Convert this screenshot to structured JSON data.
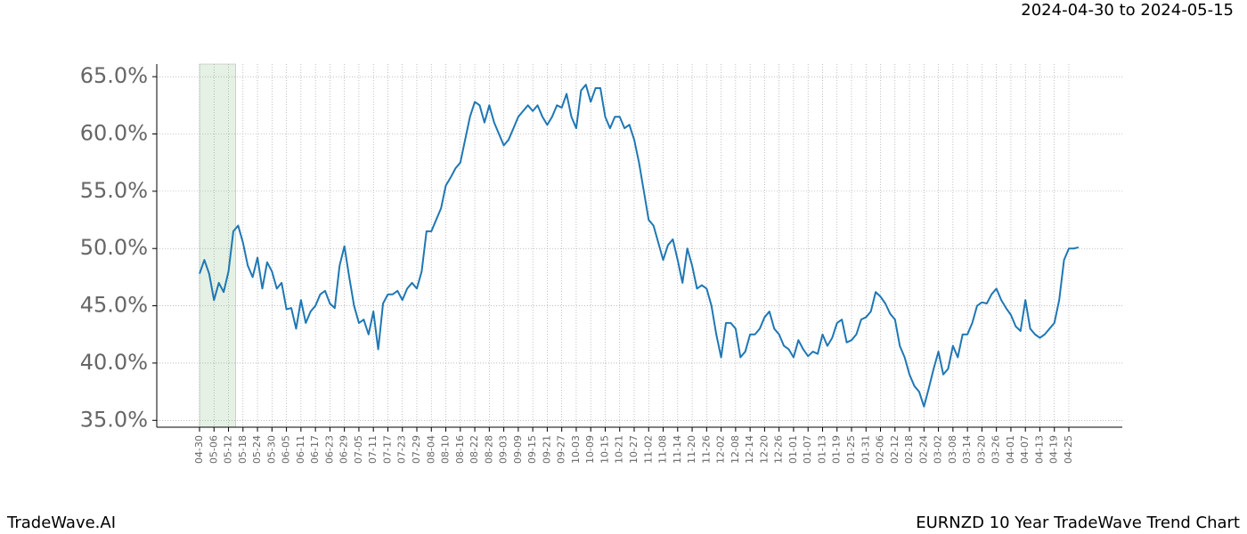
{
  "chart_data": {
    "type": "line",
    "subtitle": "2024-04-30 to 2024-05-15",
    "highlight_color": "#e4f1e4",
    "categories": [
      "04-30",
      null,
      null,
      "05-06",
      null,
      null,
      "05-12",
      null,
      null,
      "05-18",
      null,
      null,
      "05-24",
      null,
      null,
      "05-30",
      null,
      null,
      "06-05",
      null,
      null,
      "06-11",
      null,
      null,
      "06-17",
      null,
      null,
      "06-23",
      null,
      null,
      "06-29",
      null,
      null,
      "07-05",
      null,
      null,
      "07-11",
      null,
      null,
      "07-17",
      null,
      null,
      "07-23",
      null,
      null,
      "07-29",
      null,
      null,
      "08-04",
      null,
      null,
      "08-10",
      null,
      null,
      "08-16",
      null,
      null,
      "08-22",
      null,
      null,
      "08-28",
      null,
      null,
      "09-03",
      null,
      null,
      "09-09",
      null,
      null,
      "09-15",
      null,
      null,
      "09-21",
      null,
      null,
      "09-27",
      null,
      null,
      "10-03",
      null,
      null,
      "10-09",
      null,
      null,
      "10-15",
      null,
      null,
      "10-21",
      null,
      null,
      "10-27",
      null,
      null,
      "11-02",
      null,
      null,
      "11-08",
      null,
      null,
      "11-14",
      null,
      null,
      "11-20",
      null,
      null,
      "11-26",
      null,
      null,
      "12-02",
      null,
      null,
      "12-08",
      null,
      null,
      "12-14",
      null,
      null,
      "12-20",
      null,
      null,
      "12-26",
      null,
      null,
      "01-01",
      null,
      null,
      "01-07",
      null,
      null,
      "01-13",
      null,
      null,
      "01-19",
      null,
      null,
      "01-25",
      null,
      null,
      "01-31",
      null,
      null,
      "02-06",
      null,
      null,
      "02-12",
      null,
      null,
      "02-18",
      null,
      null,
      "02-24",
      null,
      null,
      "03-02",
      null,
      null,
      "03-08",
      null,
      null,
      "03-14",
      null,
      null,
      "03-20",
      null,
      null,
      "03-26",
      null,
      null,
      "04-01",
      null,
      null,
      "04-07",
      null,
      null,
      "04-13",
      null,
      null,
      "04-19",
      null,
      null,
      "04-25",
      null,
      null
    ],
    "values": [
      47.8,
      49.0,
      47.8,
      45.5,
      47,
      46.2,
      48,
      51.5,
      52,
      50.5,
      48.5,
      47.5,
      49.2,
      46.5,
      48.8,
      48,
      46.5,
      47,
      44.7,
      44.8,
      43,
      45.5,
      43.5,
      44.5,
      45,
      46,
      46.3,
      45.2,
      44.8,
      48.5,
      50.2,
      47.5,
      45,
      43.5,
      43.8,
      42.5,
      44.5,
      41.2,
      45.2,
      46,
      46,
      46.3,
      45.5,
      46.5,
      47,
      46.5,
      48,
      51.5,
      51.5,
      52.5,
      53.5,
      55.5,
      56.2,
      57,
      57.5,
      59.5,
      61.5,
      62.8,
      62.5,
      61,
      62.5,
      61,
      60,
      59,
      59.5,
      60.5,
      61.5,
      62,
      62.5,
      62,
      62.5,
      61.5,
      60.8,
      61.5,
      62.5,
      62.3,
      63.5,
      61.5,
      60.5,
      63.8,
      64.3,
      62.8,
      64,
      64,
      61.5,
      60.5,
      61.5,
      61.5,
      60.5,
      60.8,
      59.5,
      57.5,
      55,
      52.5,
      52,
      50.5,
      49,
      50.3,
      50.8,
      49,
      47,
      50,
      48.5,
      46.5,
      46.8,
      46.5,
      45,
      42.5,
      40.5,
      43.5,
      43.5,
      43,
      40.5,
      41,
      42.5,
      42.5,
      43,
      44,
      44.5,
      43,
      42.5,
      41.5,
      41.2,
      40.5,
      42,
      41.2,
      40.6,
      41,
      40.8,
      42.5,
      41.5,
      42.2,
      43.5,
      43.8,
      41.8,
      42,
      42.5,
      43.8,
      44,
      44.5,
      46.2,
      45.8,
      45.2,
      44.3,
      43.8,
      41.5,
      40.5,
      39,
      38,
      37.5,
      36.2,
      37.8,
      39.5,
      41,
      39,
      39.5,
      41.5,
      40.5,
      42.5,
      42.5,
      43.5,
      45,
      45.3,
      45.2,
      46,
      46.5,
      45.5,
      44.8,
      44.2,
      43.2,
      42.8,
      45.5,
      43,
      42.5,
      42.2,
      42.5,
      43,
      43.5,
      45.5,
      49,
      50,
      50,
      50.1
    ],
    "color": "#1f77b4",
    "ylim": [
      34.4,
      66.1
    ],
    "yticks": [
      {
        "value": 35,
        "label": "35.0%"
      },
      {
        "value": 40,
        "label": "40.0%"
      },
      {
        "value": 45,
        "label": "45.0%"
      },
      {
        "value": 50,
        "label": "50.0%"
      },
      {
        "value": 55,
        "label": "55.0%"
      },
      {
        "value": 60,
        "label": "60.0%"
      },
      {
        "value": 65,
        "label": "65.0%"
      }
    ],
    "grid": true
  },
  "footer": {
    "left": "TradeWave.AI",
    "right": "EURNZD 10 Year TradeWave Trend Chart"
  }
}
